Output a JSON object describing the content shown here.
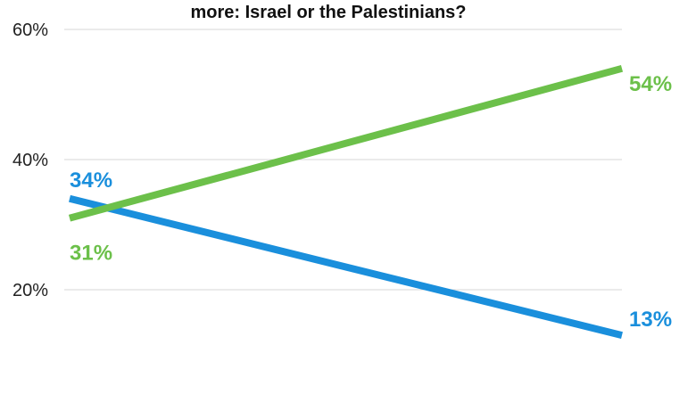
{
  "chart_data": {
    "type": "line",
    "title": "more: Israel or the Palestinians?",
    "xlabel": "",
    "ylabel": "",
    "x": [
      0,
      1
    ],
    "ylim": [
      0,
      60
    ],
    "yticks": [
      20,
      40,
      60
    ],
    "ytick_labels": [
      "20%",
      "40%",
      "60%"
    ],
    "grid": true,
    "series": [
      {
        "key": "blue",
        "color": "#1a8fdc",
        "values": [
          34,
          13
        ],
        "labels": [
          "34%",
          "13%"
        ]
      },
      {
        "key": "green",
        "color": "#6cc04a",
        "values": [
          31,
          54
        ],
        "labels": [
          "31%",
          "54%"
        ]
      }
    ]
  }
}
